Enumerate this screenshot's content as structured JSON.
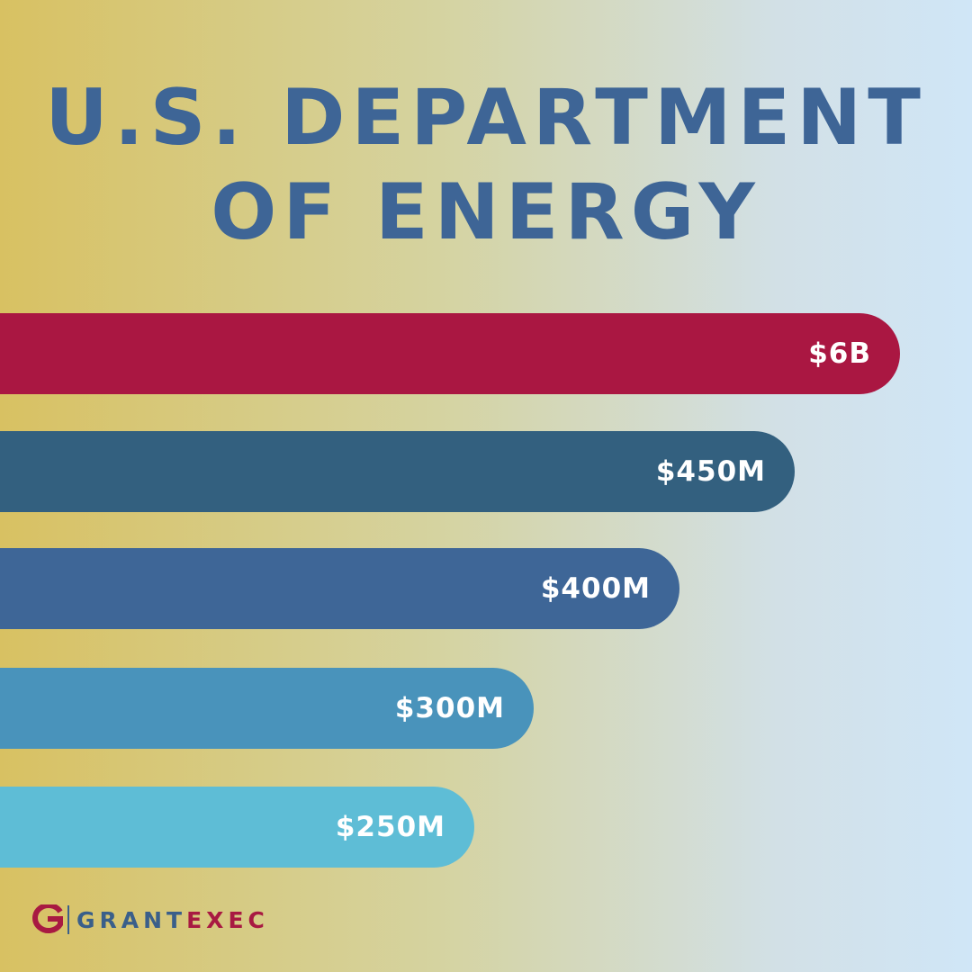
{
  "title": {
    "line1": "U.S. DEPARTMENT",
    "line2": "OF ENERGY"
  },
  "chart_data": {
    "type": "bar",
    "orientation": "horizontal",
    "title": "U.S. DEPARTMENT OF ENERGY",
    "labels": [
      "$6B",
      "$450M",
      "$400M",
      "$300M",
      "$250M"
    ],
    "colors": [
      "#aa1742",
      "#33607f",
      "#3e6697",
      "#4993bb",
      "#5ebdd6"
    ],
    "bar_fraction": [
      0.926,
      0.818,
      0.699,
      0.549,
      0.488
    ],
    "grid": false,
    "legend": "none"
  },
  "brand": {
    "logo_icon": "grantexec-g-icon",
    "name_part1": "GRANT",
    "name_part2": "EXEC",
    "colors": {
      "primary": "#3a5f8a",
      "accent": "#a81a42"
    }
  }
}
